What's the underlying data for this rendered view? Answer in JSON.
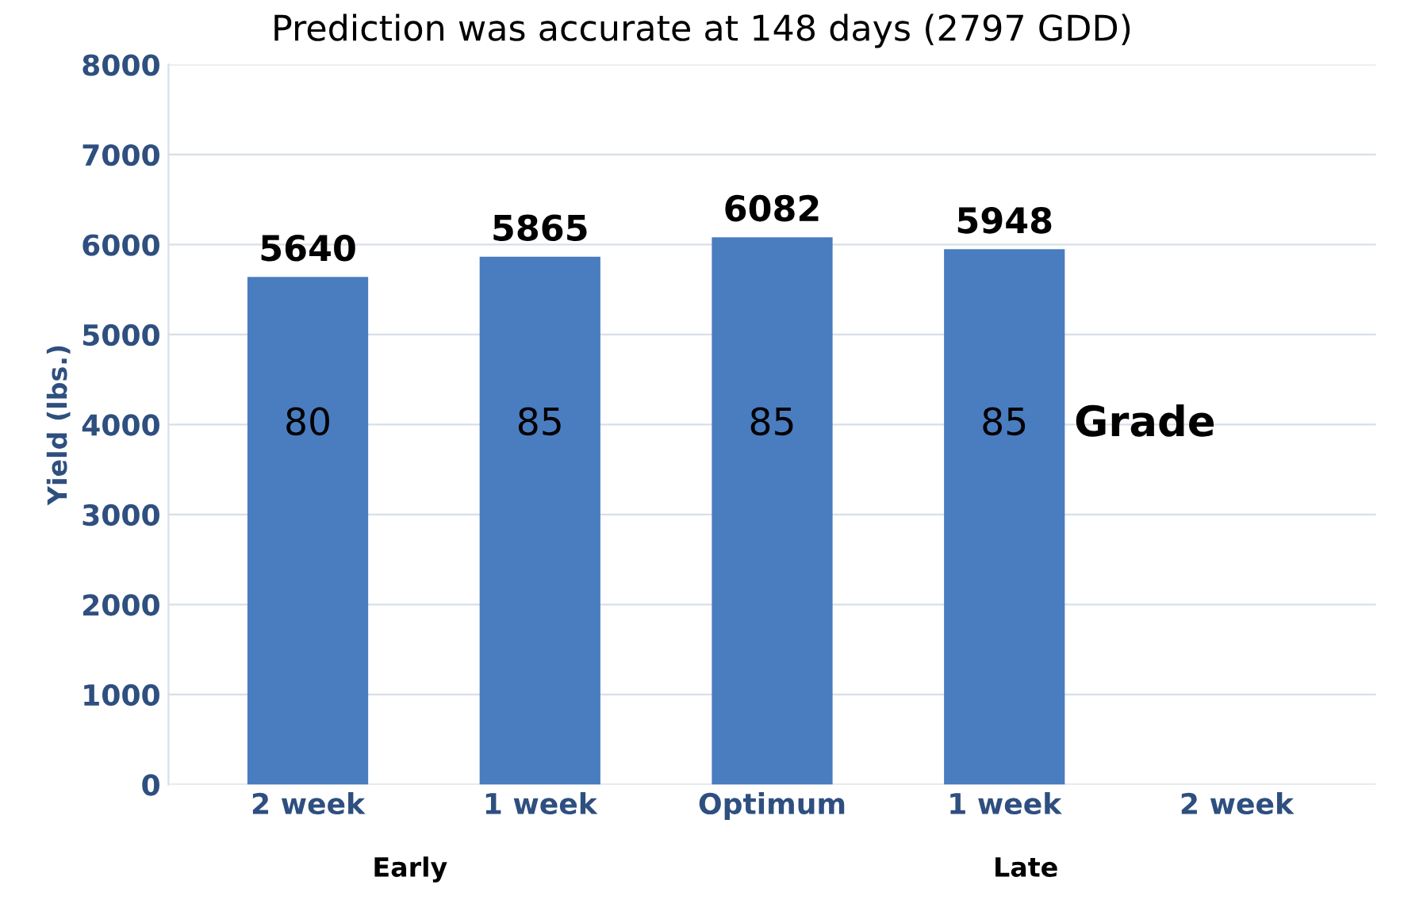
{
  "chart_data": {
    "type": "bar",
    "title": "Prediction was accurate at 148 days (2797 GDD)",
    "ylabel": "Yield (lbs.)",
    "categories": [
      "2 week",
      "1 week",
      "Optimum",
      "1 week",
      "2 week"
    ],
    "values": [
      5640,
      5865,
      6082,
      5948,
      null
    ],
    "color": "#4a7cc0",
    "ylim": [
      0,
      8000
    ],
    "yticks": [
      0,
      1000,
      2000,
      3000,
      4000,
      5000,
      6000,
      7000,
      8000
    ],
    "grid": "y",
    "data_labels": true,
    "annotations": [
      "80",
      "85",
      "85",
      "85",
      "Grade",
      "Early",
      "Late"
    ]
  }
}
